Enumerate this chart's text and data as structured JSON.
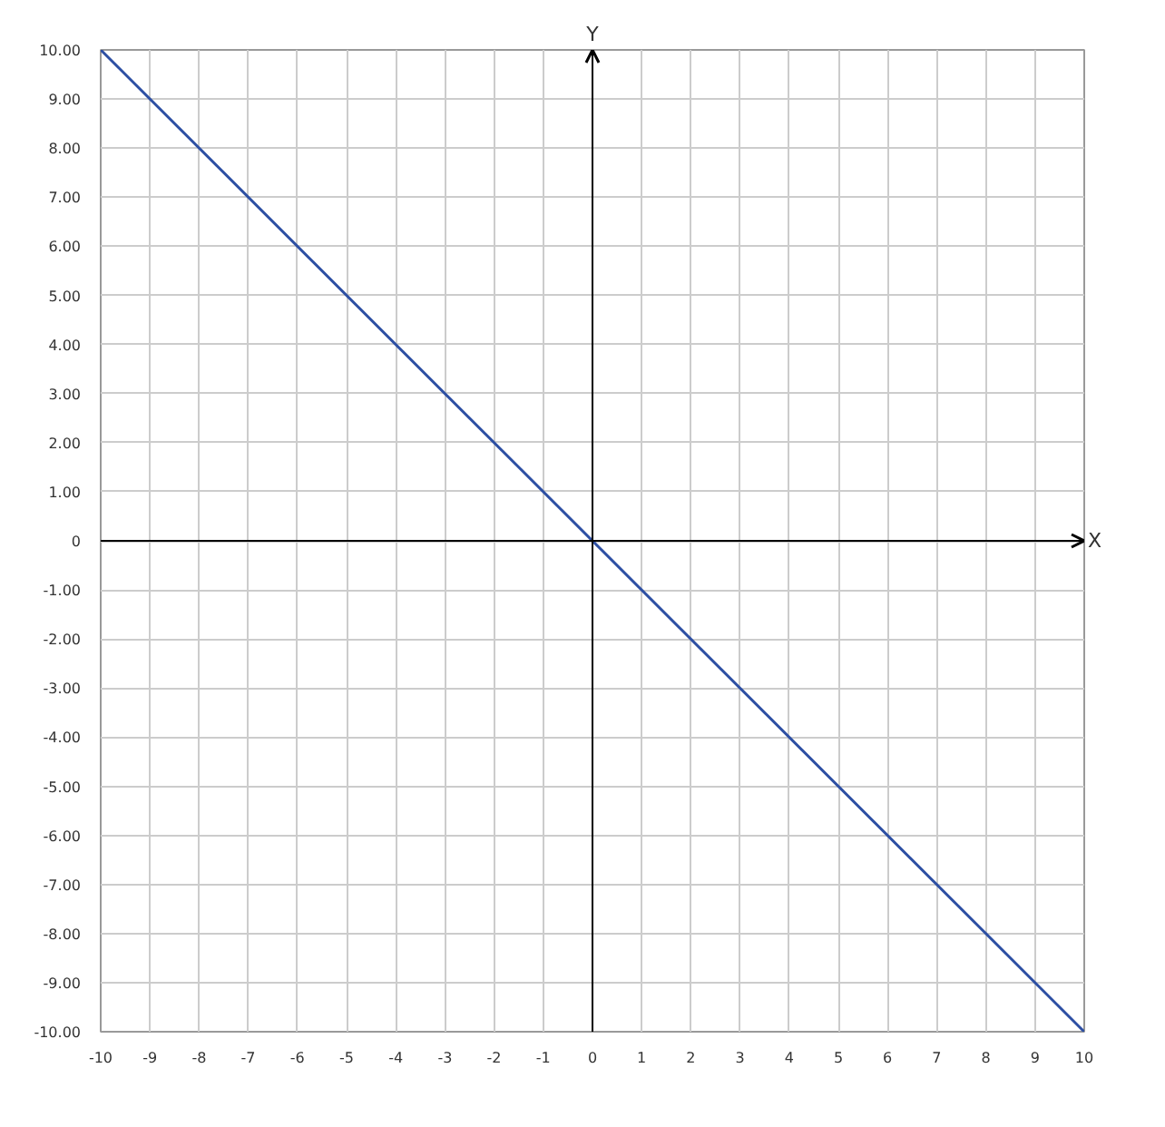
{
  "chart_data": {
    "type": "line",
    "xlabel": "X",
    "ylabel": "Y",
    "x": [
      -10,
      10
    ],
    "series": [
      {
        "color": "#2d4fa3",
        "values": [
          10,
          -10
        ]
      }
    ],
    "xlim": [
      -10,
      10
    ],
    "ylim": [
      -10,
      10
    ],
    "xticks": [
      -10,
      -9,
      -8,
      -7,
      -6,
      -5,
      -4,
      -3,
      -2,
      -1,
      0,
      1,
      2,
      3,
      4,
      5,
      6,
      7,
      8,
      9,
      10
    ],
    "yticks": [
      {
        "value": 10,
        "label": "10.00"
      },
      {
        "value": 9,
        "label": "9.00"
      },
      {
        "value": 8,
        "label": "8.00"
      },
      {
        "value": 7,
        "label": "7.00"
      },
      {
        "value": 6,
        "label": "6.00"
      },
      {
        "value": 5,
        "label": "5.00"
      },
      {
        "value": 4,
        "label": "4.00"
      },
      {
        "value": 3,
        "label": "3.00"
      },
      {
        "value": 2,
        "label": "2.00"
      },
      {
        "value": 1,
        "label": "1.00"
      },
      0,
      {
        "value": -1,
        "label": "-1.00"
      },
      {
        "value": -2,
        "label": "-2.00"
      },
      {
        "value": -3,
        "label": "-3.00"
      },
      {
        "value": -4,
        "label": "-4.00"
      },
      {
        "value": -5,
        "label": "-5.00"
      },
      {
        "value": -6,
        "label": "-6.00"
      },
      {
        "value": -7,
        "label": "-7.00"
      },
      {
        "value": -8,
        "label": "-8.00"
      },
      {
        "value": -9,
        "label": "-9.00"
      },
      {
        "value": -10,
        "label": "-10.00"
      }
    ],
    "grid": true
  }
}
